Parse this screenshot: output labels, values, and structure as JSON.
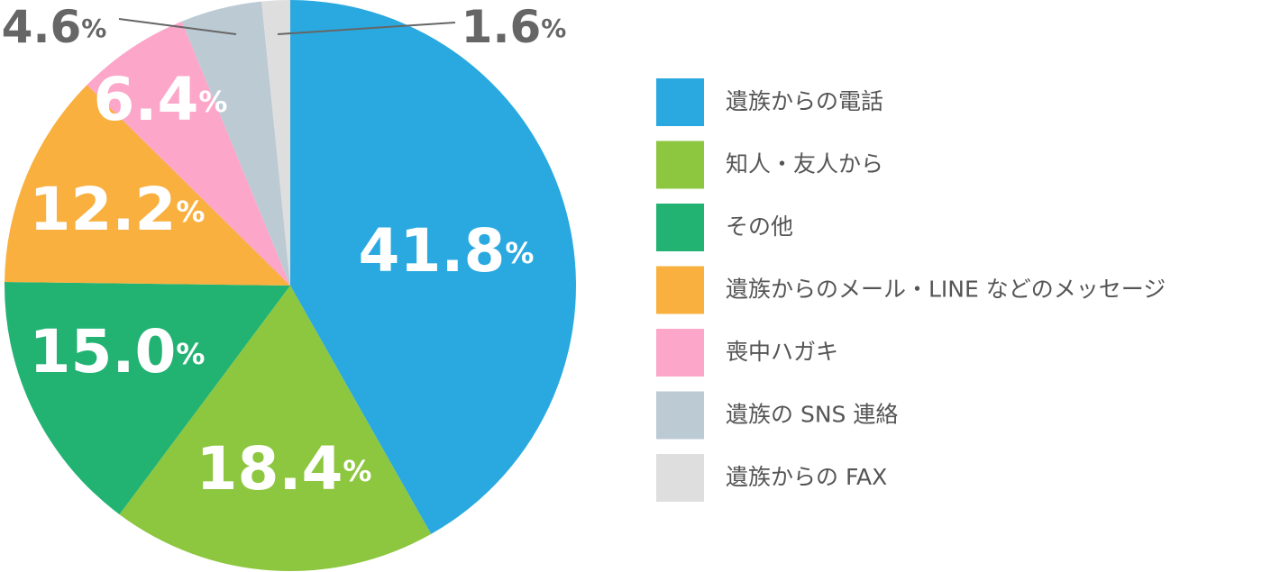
{
  "chart_data": {
    "type": "pie",
    "categories": [
      "遺族からの電話",
      "知人・友人から",
      "その他",
      "遺族からのメール・LINE などのメッセージ",
      "喪中ハガキ",
      "遺族の SNS 連絡",
      "遺族からの FAX"
    ],
    "values": [
      41.8,
      18.4,
      15.0,
      12.2,
      6.4,
      4.6,
      1.6
    ],
    "value_labels": [
      "41.8%",
      "18.4%",
      "15.0%",
      "12.2%",
      "6.4%",
      "4.6%",
      "1.6%"
    ],
    "colors": [
      "#29a9e0",
      "#8dc63f",
      "#22b373",
      "#f9b03e",
      "#fca6c9",
      "#bccad4",
      "#dedede"
    ],
    "legend": "right"
  }
}
